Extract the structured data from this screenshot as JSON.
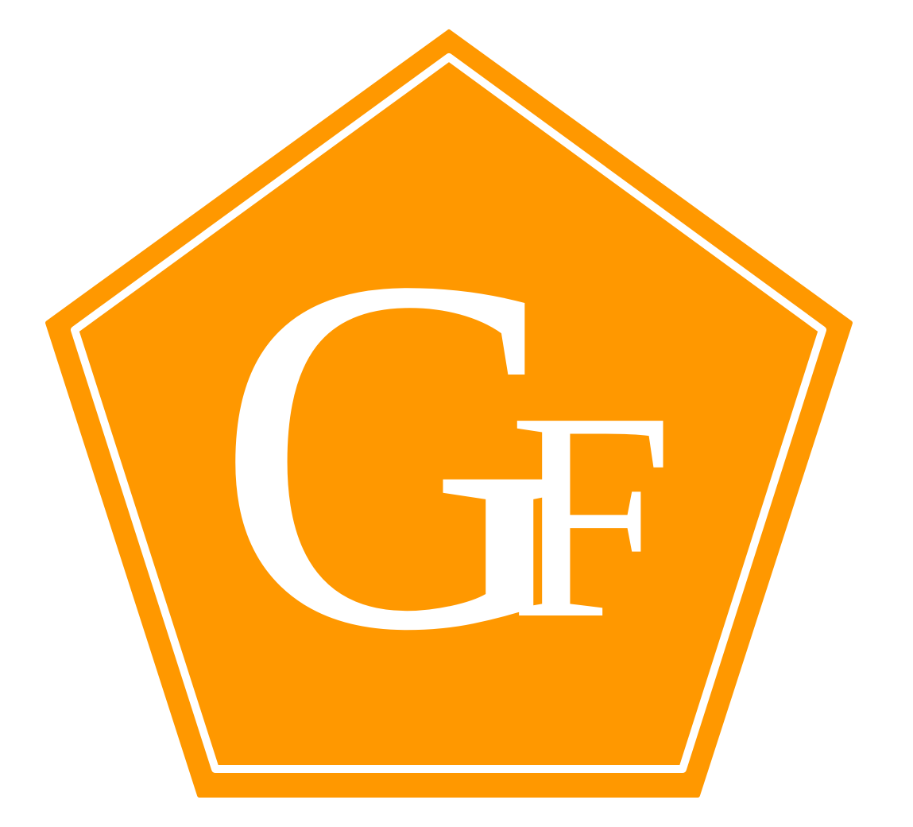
{
  "logo": {
    "letter_primary": "G",
    "letter_secondary": "F",
    "colors": {
      "background": "#ffffff",
      "pentagon_fill": "#ff9800",
      "inner_stroke": "#ffffff",
      "letters": "#ffffff"
    }
  }
}
